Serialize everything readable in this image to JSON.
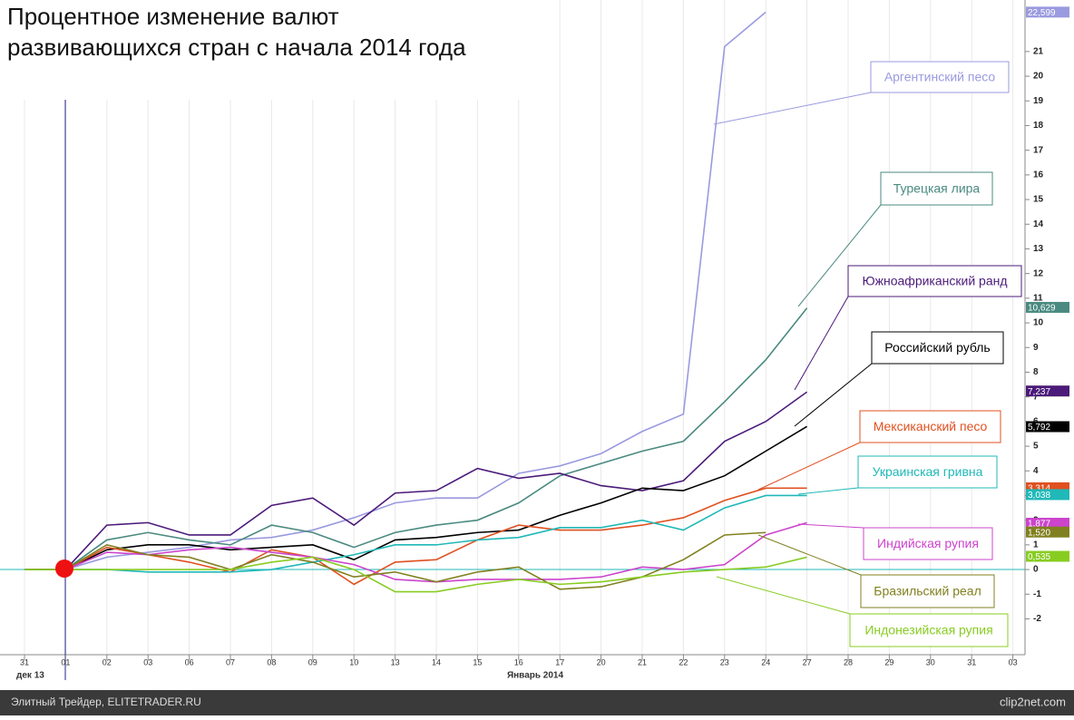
{
  "chart_data": {
    "type": "line",
    "title": [
      "Процентное изменение валют",
      "развивающихся стран с начала 2014 года"
    ],
    "categories": [
      "31",
      "01",
      "02",
      "03",
      "06",
      "07",
      "08",
      "09",
      "10",
      "13",
      "14",
      "15",
      "16",
      "17",
      "20",
      "21",
      "22",
      "23",
      "24",
      "27",
      "28",
      "29",
      "30",
      "31",
      "03"
    ],
    "x_group_labels": [
      "дек 13",
      "Январь 2014"
    ],
    "ylim": [
      -3.38,
      23.09
    ],
    "yticks": [
      -2,
      -1,
      0,
      1,
      2,
      3,
      4,
      5,
      6,
      7,
      8,
      9,
      10,
      11,
      12,
      13,
      14,
      15,
      16,
      17,
      18,
      19,
      20,
      21
    ],
    "series": [
      {
        "name": "Аргентинский песо",
        "color": "#9a9ae0",
        "values": [
          0,
          0,
          0.5,
          0.7,
          0.9,
          1.2,
          1.3,
          1.6,
          2.1,
          2.7,
          2.9,
          2.9,
          3.9,
          4.2,
          4.7,
          5.6,
          6.3,
          21.2,
          22.6,
          null,
          null,
          null,
          null,
          null,
          null
        ]
      },
      {
        "name": "Турецкая лира",
        "color": "#4a8a80",
        "values": [
          0,
          0,
          1.2,
          1.5,
          1.2,
          1.0,
          1.8,
          1.5,
          0.9,
          1.5,
          1.8,
          2.0,
          2.7,
          3.8,
          4.3,
          4.8,
          5.2,
          6.8,
          8.5,
          10.6,
          null,
          null,
          null,
          null,
          null
        ]
      },
      {
        "name": "Южноафриканский ранд",
        "color": "#4b1a7a",
        "values": [
          0,
          0,
          1.8,
          1.9,
          1.4,
          1.4,
          2.6,
          2.9,
          1.8,
          3.1,
          3.2,
          4.1,
          3.7,
          3.9,
          3.4,
          3.2,
          3.6,
          5.2,
          6.0,
          7.2,
          null,
          null,
          null,
          null,
          null
        ]
      },
      {
        "name": "Российский рубль",
        "color": "#000000",
        "values": [
          0,
          0,
          0.8,
          1.0,
          1.0,
          0.8,
          0.9,
          1.0,
          0.4,
          1.2,
          1.3,
          1.5,
          1.6,
          2.2,
          2.7,
          3.3,
          3.2,
          3.8,
          4.8,
          5.8,
          null,
          null,
          null,
          null,
          null
        ]
      },
      {
        "name": "Мексиканский песо",
        "color": "#e05020",
        "values": [
          0,
          0,
          0.9,
          0.6,
          0.3,
          -0.1,
          0.8,
          0.5,
          -0.6,
          0.3,
          0.4,
          1.2,
          1.8,
          1.6,
          1.6,
          1.8,
          2.1,
          2.8,
          3.3,
          3.3,
          null,
          null,
          null,
          null,
          null
        ]
      },
      {
        "name": "Украинская гривна",
        "color": "#20b8b8",
        "values": [
          0,
          0,
          0,
          -0.1,
          -0.1,
          -0.1,
          0,
          0.3,
          0.6,
          1.0,
          1.0,
          1.2,
          1.3,
          1.7,
          1.7,
          2.0,
          1.6,
          2.5,
          3.0,
          3.0,
          null,
          null,
          null,
          null,
          null
        ]
      },
      {
        "name": "Индийская рупия",
        "color": "#cc44cc",
        "values": [
          0,
          0,
          0.7,
          0.6,
          0.8,
          0.9,
          0.7,
          0.5,
          0.2,
          -0.4,
          -0.5,
          -0.4,
          -0.4,
          -0.4,
          -0.3,
          0.1,
          0.0,
          0.2,
          1.4,
          1.9,
          null,
          null,
          null,
          null,
          null
        ]
      },
      {
        "name": "Бразильский реал",
        "color": "#808020",
        "values": [
          0,
          0,
          1.0,
          0.6,
          0.5,
          0.0,
          0.6,
          0.3,
          -0.3,
          -0.1,
          -0.5,
          -0.1,
          0.1,
          -0.8,
          -0.7,
          -0.3,
          0.4,
          1.4,
          1.5,
          null,
          null,
          null,
          null,
          null,
          null
        ]
      },
      {
        "name": "Индонезийская рупия",
        "color": "#88cc22",
        "values": [
          0,
          0,
          0,
          0,
          0,
          0,
          0.3,
          0.5,
          0,
          -0.9,
          -0.9,
          -0.6,
          -0.4,
          -0.6,
          -0.5,
          -0.3,
          -0.1,
          0,
          0.1,
          0.5,
          null,
          null,
          null,
          null,
          null
        ]
      }
    ],
    "end_tags": [
      {
        "value": 22.599,
        "label": "22,599",
        "color": "#9a9ae0"
      },
      {
        "value": 10.629,
        "label": "10,629",
        "color": "#4a8a80"
      },
      {
        "value": 7.237,
        "label": "7,237",
        "color": "#ffff88"
      },
      {
        "value": 7.237,
        "label": "7,237",
        "color": "#4b1a7a"
      },
      {
        "value": 5.792,
        "label": "5,792",
        "color": "#000000"
      },
      {
        "value": 3.314,
        "label": "3,314",
        "color": "#e05020"
      },
      {
        "value": 3.038,
        "label": "3,038",
        "color": "#20b8b8"
      },
      {
        "value": 1.877,
        "label": "1,877",
        "color": "#cc44cc"
      },
      {
        "value": 1.52,
        "label": "1,520",
        "color": "#808020"
      },
      {
        "value": 0.535,
        "label": "0,535",
        "color": "#88cc22"
      }
    ]
  },
  "footer": {
    "left": "Элитный Трейдер, ELITETRADER.RU",
    "right": "clip2net.com"
  }
}
